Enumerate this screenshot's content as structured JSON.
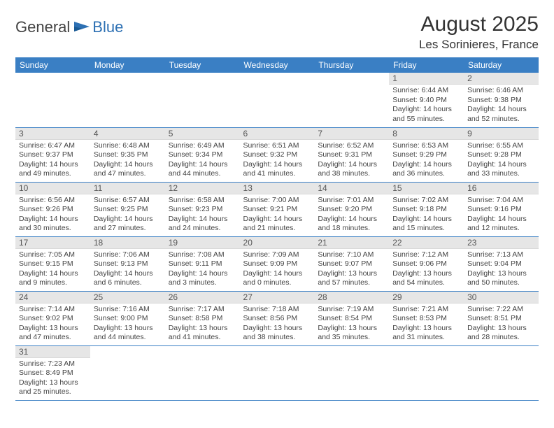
{
  "logo": {
    "text1": "General",
    "text2": "Blue"
  },
  "title": "August 2025",
  "location": "Les Sorinieres, France",
  "dayHeaders": [
    "Sunday",
    "Monday",
    "Tuesday",
    "Wednesday",
    "Thursday",
    "Friday",
    "Saturday"
  ],
  "colors": {
    "headerBg": "#3a7fc4",
    "dayNumBg": "#e6e6e6",
    "rowBorder": "#3a7fc4"
  },
  "weeks": [
    [
      null,
      null,
      null,
      null,
      null,
      {
        "n": "1",
        "sr": "6:44 AM",
        "ss": "9:40 PM",
        "dl": "14 hours and 55 minutes."
      },
      {
        "n": "2",
        "sr": "6:46 AM",
        "ss": "9:38 PM",
        "dl": "14 hours and 52 minutes."
      }
    ],
    [
      {
        "n": "3",
        "sr": "6:47 AM",
        "ss": "9:37 PM",
        "dl": "14 hours and 49 minutes."
      },
      {
        "n": "4",
        "sr": "6:48 AM",
        "ss": "9:35 PM",
        "dl": "14 hours and 47 minutes."
      },
      {
        "n": "5",
        "sr": "6:49 AM",
        "ss": "9:34 PM",
        "dl": "14 hours and 44 minutes."
      },
      {
        "n": "6",
        "sr": "6:51 AM",
        "ss": "9:32 PM",
        "dl": "14 hours and 41 minutes."
      },
      {
        "n": "7",
        "sr": "6:52 AM",
        "ss": "9:31 PM",
        "dl": "14 hours and 38 minutes."
      },
      {
        "n": "8",
        "sr": "6:53 AM",
        "ss": "9:29 PM",
        "dl": "14 hours and 36 minutes."
      },
      {
        "n": "9",
        "sr": "6:55 AM",
        "ss": "9:28 PM",
        "dl": "14 hours and 33 minutes."
      }
    ],
    [
      {
        "n": "10",
        "sr": "6:56 AM",
        "ss": "9:26 PM",
        "dl": "14 hours and 30 minutes."
      },
      {
        "n": "11",
        "sr": "6:57 AM",
        "ss": "9:25 PM",
        "dl": "14 hours and 27 minutes."
      },
      {
        "n": "12",
        "sr": "6:58 AM",
        "ss": "9:23 PM",
        "dl": "14 hours and 24 minutes."
      },
      {
        "n": "13",
        "sr": "7:00 AM",
        "ss": "9:21 PM",
        "dl": "14 hours and 21 minutes."
      },
      {
        "n": "14",
        "sr": "7:01 AM",
        "ss": "9:20 PM",
        "dl": "14 hours and 18 minutes."
      },
      {
        "n": "15",
        "sr": "7:02 AM",
        "ss": "9:18 PM",
        "dl": "14 hours and 15 minutes."
      },
      {
        "n": "16",
        "sr": "7:04 AM",
        "ss": "9:16 PM",
        "dl": "14 hours and 12 minutes."
      }
    ],
    [
      {
        "n": "17",
        "sr": "7:05 AM",
        "ss": "9:15 PM",
        "dl": "14 hours and 9 minutes."
      },
      {
        "n": "18",
        "sr": "7:06 AM",
        "ss": "9:13 PM",
        "dl": "14 hours and 6 minutes."
      },
      {
        "n": "19",
        "sr": "7:08 AM",
        "ss": "9:11 PM",
        "dl": "14 hours and 3 minutes."
      },
      {
        "n": "20",
        "sr": "7:09 AM",
        "ss": "9:09 PM",
        "dl": "14 hours and 0 minutes."
      },
      {
        "n": "21",
        "sr": "7:10 AM",
        "ss": "9:07 PM",
        "dl": "13 hours and 57 minutes."
      },
      {
        "n": "22",
        "sr": "7:12 AM",
        "ss": "9:06 PM",
        "dl": "13 hours and 54 minutes."
      },
      {
        "n": "23",
        "sr": "7:13 AM",
        "ss": "9:04 PM",
        "dl": "13 hours and 50 minutes."
      }
    ],
    [
      {
        "n": "24",
        "sr": "7:14 AM",
        "ss": "9:02 PM",
        "dl": "13 hours and 47 minutes."
      },
      {
        "n": "25",
        "sr": "7:16 AM",
        "ss": "9:00 PM",
        "dl": "13 hours and 44 minutes."
      },
      {
        "n": "26",
        "sr": "7:17 AM",
        "ss": "8:58 PM",
        "dl": "13 hours and 41 minutes."
      },
      {
        "n": "27",
        "sr": "7:18 AM",
        "ss": "8:56 PM",
        "dl": "13 hours and 38 minutes."
      },
      {
        "n": "28",
        "sr": "7:19 AM",
        "ss": "8:54 PM",
        "dl": "13 hours and 35 minutes."
      },
      {
        "n": "29",
        "sr": "7:21 AM",
        "ss": "8:53 PM",
        "dl": "13 hours and 31 minutes."
      },
      {
        "n": "30",
        "sr": "7:22 AM",
        "ss": "8:51 PM",
        "dl": "13 hours and 28 minutes."
      }
    ],
    [
      {
        "n": "31",
        "sr": "7:23 AM",
        "ss": "8:49 PM",
        "dl": "13 hours and 25 minutes."
      },
      null,
      null,
      null,
      null,
      null,
      null
    ]
  ],
  "labels": {
    "sunrise": "Sunrise:",
    "sunset": "Sunset:",
    "daylight": "Daylight:"
  }
}
